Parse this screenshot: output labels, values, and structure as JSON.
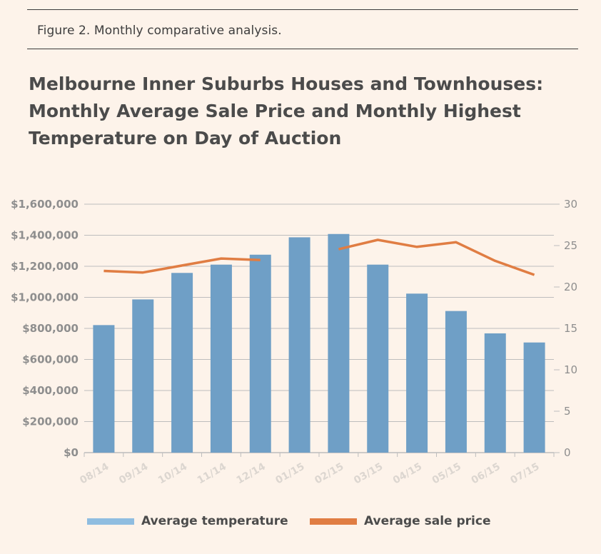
{
  "caption": "Figure 2. Monthly comparative analysis.",
  "title_lines": [
    "Melbourne Inner Suburbs Houses and Townhouses:",
    "Monthly Average Sale Price and Monthly Highest",
    "Temperature on Day of Auction"
  ],
  "colors": {
    "bar": "#6f9fc6",
    "bar_legend": "#8fbde0",
    "line": "#e07d43",
    "grid": "#bdbdbd",
    "axis_text": "#8e8e8e"
  },
  "chart_data": {
    "type": "bar",
    "categories": [
      "08/14",
      "09/14",
      "10/14",
      "11/14",
      "12/14",
      "01/15",
      "02/15",
      "03/15",
      "04/15",
      "05/15",
      "06/15",
      "07/15"
    ],
    "series": [
      {
        "name": "Average temperature",
        "type": "bar",
        "axis": "right",
        "values": [
          15.4,
          18.5,
          21.7,
          22.7,
          23.9,
          26.0,
          26.4,
          22.7,
          19.2,
          17.1,
          14.4,
          13.3
        ]
      },
      {
        "name": "Average sale price",
        "type": "line",
        "axis": "left",
        "values": [
          1170000,
          1160000,
          1205000,
          1250000,
          1240000,
          null,
          1310000,
          1370000,
          1325000,
          1355000,
          1235000,
          1145000
        ]
      }
    ],
    "y_left": {
      "min": 0,
      "max": 1600000,
      "ticks": [
        "$0",
        "$200,000",
        "$400,000",
        "$600,000",
        "$800,000",
        "$1,000,000",
        "$1,200,000",
        "$1,400,000",
        "$1,600,000"
      ]
    },
    "y_right": {
      "min": 0,
      "max": 30,
      "ticks": [
        "0",
        "5",
        "10",
        "15",
        "20",
        "25",
        "30"
      ]
    },
    "grid": true,
    "legend_position": "bottom"
  }
}
